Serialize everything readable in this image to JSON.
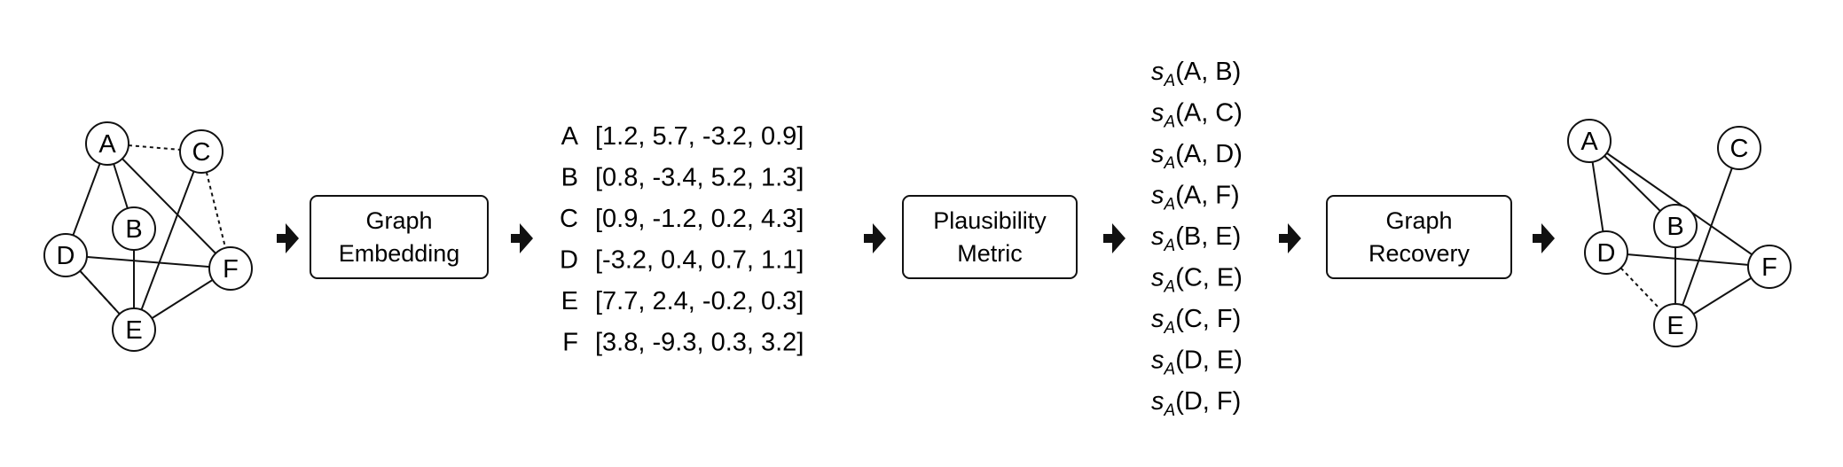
{
  "graphs": [
    {
      "nodes": [
        "A",
        "B",
        "C",
        "D",
        "E",
        "F"
      ],
      "solid_edges": [
        [
          "A",
          "D"
        ],
        [
          "A",
          "B"
        ],
        [
          "A",
          "F"
        ],
        [
          "C",
          "E"
        ],
        [
          "D",
          "F"
        ],
        [
          "D",
          "E"
        ],
        [
          "B",
          "E"
        ],
        [
          "E",
          "F"
        ]
      ],
      "dotted_edges": [
        [
          "A",
          "C"
        ],
        [
          "C",
          "F"
        ],
        [
          "D",
          "E"
        ]
      ]
    },
    {
      "nodes": [
        "A",
        "B",
        "C",
        "D",
        "E",
        "F"
      ],
      "solid_edges": [
        [
          "A",
          "D"
        ],
        [
          "A",
          "B"
        ],
        [
          "A",
          "F"
        ],
        [
          "C",
          "E"
        ],
        [
          "D",
          "F"
        ],
        [
          "B",
          "E"
        ],
        [
          "E",
          "F"
        ]
      ],
      "dotted_edges": [
        [
          "D",
          "E"
        ]
      ]
    }
  ],
  "steps": [
    {
      "line1": "Graph",
      "line2": "Embedding"
    },
    {
      "line1": "Plausibility",
      "line2": "Metric"
    },
    {
      "line1": "Graph",
      "line2": "Recovery"
    }
  ],
  "embeddings": [
    {
      "node": "A",
      "vector": "[1.2, 5.7, -3.2, 0.9]"
    },
    {
      "node": "B",
      "vector": "[0.8, -3.4, 5.2, 1.3]"
    },
    {
      "node": "C",
      "vector": "[0.9, -1.2, 0.2, 4.3]"
    },
    {
      "node": "D",
      "vector": "[-3.2, 0.4, 0.7, 1.1]"
    },
    {
      "node": "E",
      "vector": "[7.7, 2.4, -0.2, 0.3]"
    },
    {
      "node": "F",
      "vector": "[3.8, -9.3, 0.3, 3.2]"
    }
  ],
  "scores": {
    "symbol": "s",
    "subscript": "A",
    "pairs": [
      "(A, B)",
      "(A, C)",
      "(A, D)",
      "(A, F)",
      "(B, E)",
      "(C, E)",
      "(C, F)",
      "(D, E)",
      "(D, F)"
    ]
  }
}
